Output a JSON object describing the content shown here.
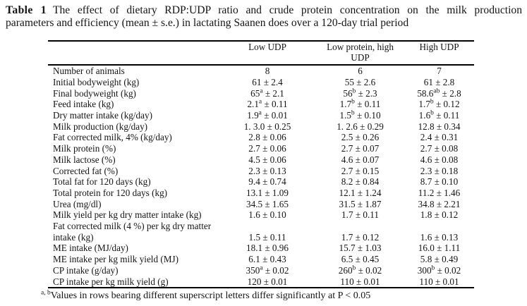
{
  "caption": {
    "label": "Table 1",
    "line1": "The effect of dietary RDP:UDP ratio and crude protein concentration on the milk production",
    "line2": "parameters and efficiency (mean ± s.e.) in lactating Saanen does over a 120-day trial period"
  },
  "table": {
    "columns": [
      "",
      "Low UDP",
      "Low protein, high UDP",
      "High UDP"
    ],
    "rows": [
      {
        "label": "Number of animals",
        "values": [
          "8",
          "6",
          "7"
        ]
      },
      {
        "label": "Initial bodyweight (kg)",
        "values": [
          "61 ± 2.4",
          "55 ± 2.6",
          "61 ± 2.8"
        ]
      },
      {
        "label": "Final bodyweight (kg)",
        "values": [
          "65{a} ± 2.1",
          "56{b} ± 2.3",
          "58.6{ab} ± 2.8"
        ]
      },
      {
        "label": "Feed intake (kg)",
        "values": [
          "2.1{a} ± 0.11",
          "1.7{b} ± 0.11",
          "1.7{b} ± 0.12"
        ]
      },
      {
        "label": "Dry matter intake (kg/day)",
        "values": [
          "1.9{a} ± 0.01",
          "1.5{b} ± 0.10",
          "1.6{b} ± 0.11"
        ]
      },
      {
        "label": "Milk production (kg/day)",
        "values": [
          "1. 3.0 ± 0.25",
          "1. 2.6 ± 0.29",
          "12.8 ± 0.34"
        ]
      },
      {
        "label": "Fat corrected milk, 4% (kg/day)",
        "values": [
          "2.8 ± 0.06",
          "2.5 ± 0.26",
          "2.4 ± 0.31"
        ]
      },
      {
        "label": "Milk protein (%)",
        "values": [
          "2.7 ± 0.06",
          "2.7 ± 0.07",
          "2.7 ± 0.08"
        ]
      },
      {
        "label": "Milk lactose (%)",
        "values": [
          "4.5 ± 0.06",
          "4.6 ± 0.07",
          "4.6 ± 0.08"
        ]
      },
      {
        "label": "Corrected fat (%)",
        "values": [
          "2.3 ± 0.13",
          "2.7 ± 0.15",
          "2.3 ± 0.18"
        ]
      },
      {
        "label": "Total fat for 120 days (kg)",
        "values": [
          "9.4 ± 0.74",
          "8.2 ± 0.84",
          "8.7 ± 0.10"
        ]
      },
      {
        "label": "Total protein for 120 days (kg)",
        "values": [
          "13.1 ± 1.09",
          "12.1 ± 1.24",
          "11.2 ± 1.46"
        ]
      },
      {
        "label": "Urea (mg/dl)",
        "values": [
          "34.5 ± 1.65",
          "31.5 ± 1.87",
          "34.8 ± 2.21"
        ]
      },
      {
        "label": "Milk yield per kg dry matter intake (kg)",
        "values": [
          "1.6 ± 0.10",
          "1.7 ± 0.11",
          "1.8 ± 0.12"
        ]
      },
      {
        "label": "Fat corrected milk (4 %) per kg dry matter",
        "values": [
          "",
          "",
          ""
        ]
      },
      {
        "label": "intake (kg)",
        "values": [
          "1.5 ± 0.11",
          "1.7 ± 0.12",
          "1.6 ± 0.13"
        ]
      },
      {
        "label": "ME intake (MJ/day)",
        "values": [
          "18.1 ± 0.96",
          "15.7 ± 1.03",
          "16.0 ± 1.11"
        ]
      },
      {
        "label": "ME intake per kg milk yield (MJ)",
        "values": [
          "6.1 ± 0.43",
          "6.5 ± 0.45",
          "5.8 ± 0.49"
        ]
      },
      {
        "label": "CP intake (g/day)",
        "values": [
          "350{a} ± 0.02",
          "260{b} ± 0.02",
          "300{b} ± 0.02"
        ]
      },
      {
        "label": "CP intake per kg milk yield (g)",
        "values": [
          "120 ± 0.01",
          "110 ± 0.01",
          "110 ± 0.01"
        ]
      }
    ]
  },
  "footnote": {
    "superscript": "a, b",
    "text": "Values in rows bearing different superscript letters differ significantly at P < 0.05"
  }
}
